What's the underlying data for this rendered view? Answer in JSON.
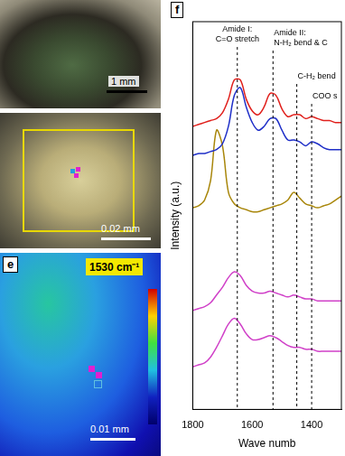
{
  "chart_data": {
    "type": "line",
    "y_label": "Intensity (a.u.)",
    "x_label": "Wave numb",
    "x": [
      1800,
      1780,
      1760,
      1740,
      1720,
      1700,
      1680,
      1660,
      1640,
      1620,
      1600,
      1580,
      1560,
      1540,
      1520,
      1500,
      1480,
      1460,
      1440,
      1420,
      1400,
      1380,
      1360,
      1340,
      1320,
      1300
    ],
    "series": [
      {
        "color": "#e0201c",
        "values": [
          7.3,
          7.35,
          7.4,
          7.45,
          7.5,
          7.65,
          8.0,
          8.5,
          8.5,
          8.0,
          7.7,
          7.6,
          7.8,
          8.15,
          8.1,
          7.75,
          7.55,
          7.6,
          7.6,
          7.5,
          7.55,
          7.5,
          7.45,
          7.45,
          7.4,
          7.4
        ]
      },
      {
        "color": "#1f2fc8",
        "values": [
          6.55,
          6.6,
          6.6,
          6.65,
          6.7,
          6.85,
          7.3,
          8.1,
          8.3,
          7.8,
          7.4,
          7.2,
          7.3,
          7.5,
          7.5,
          7.2,
          6.95,
          6.95,
          6.9,
          6.8,
          6.9,
          6.85,
          6.75,
          6.7,
          6.7,
          6.7
        ]
      },
      {
        "color": "#a8860a",
        "values": [
          5.2,
          5.25,
          5.4,
          5.9,
          7.2,
          6.8,
          5.6,
          5.3,
          5.2,
          5.15,
          5.1,
          5.1,
          5.15,
          5.2,
          5.25,
          5.3,
          5.4,
          5.6,
          5.45,
          5.3,
          5.25,
          5.2,
          5.25,
          5.3,
          5.4,
          5.5
        ]
      },
      {
        "color": "#d040c8",
        "values": [
          2.55,
          2.6,
          2.65,
          2.75,
          2.95,
          3.15,
          3.4,
          3.55,
          3.45,
          3.2,
          3.05,
          3.0,
          3.0,
          3.05,
          3.0,
          2.95,
          2.9,
          2.95,
          2.9,
          2.85,
          2.85,
          2.8,
          2.8,
          2.8,
          2.8,
          2.8
        ]
      },
      {
        "color": "#d040c8",
        "values": [
          1.1,
          1.15,
          1.2,
          1.35,
          1.6,
          1.9,
          2.2,
          2.35,
          2.2,
          1.95,
          1.8,
          1.8,
          1.85,
          1.9,
          1.85,
          1.75,
          1.65,
          1.6,
          1.6,
          1.55,
          1.55,
          1.5,
          1.5,
          1.5,
          1.5,
          1.5
        ]
      }
    ],
    "xlim": [
      1800,
      1300
    ],
    "xticks": [
      1800,
      1600,
      1400
    ],
    "ylim": [
      0,
      10
    ],
    "yticks": [],
    "tick_labels": "x",
    "grid": false,
    "annotations": [
      {
        "x": 1650,
        "text": [
          "Amide I:",
          "C=O stretch"
        ]
      },
      {
        "x": 1530,
        "text": [
          "Amide II:",
          "N-H₂ bend & C"
        ]
      },
      {
        "x": 1450,
        "text": [
          "C-H₂ bend"
        ]
      },
      {
        "x": 1400,
        "text": [
          "COO s"
        ]
      }
    ]
  },
  "panel_label": "f",
  "panels": [
    {
      "scale_bar": "1 mm"
    },
    {
      "scale_bar": "0.02 mm"
    },
    {
      "label": "e",
      "map_title": "1530 cm⁻¹",
      "scale_bar": "0.01 mm"
    }
  ]
}
